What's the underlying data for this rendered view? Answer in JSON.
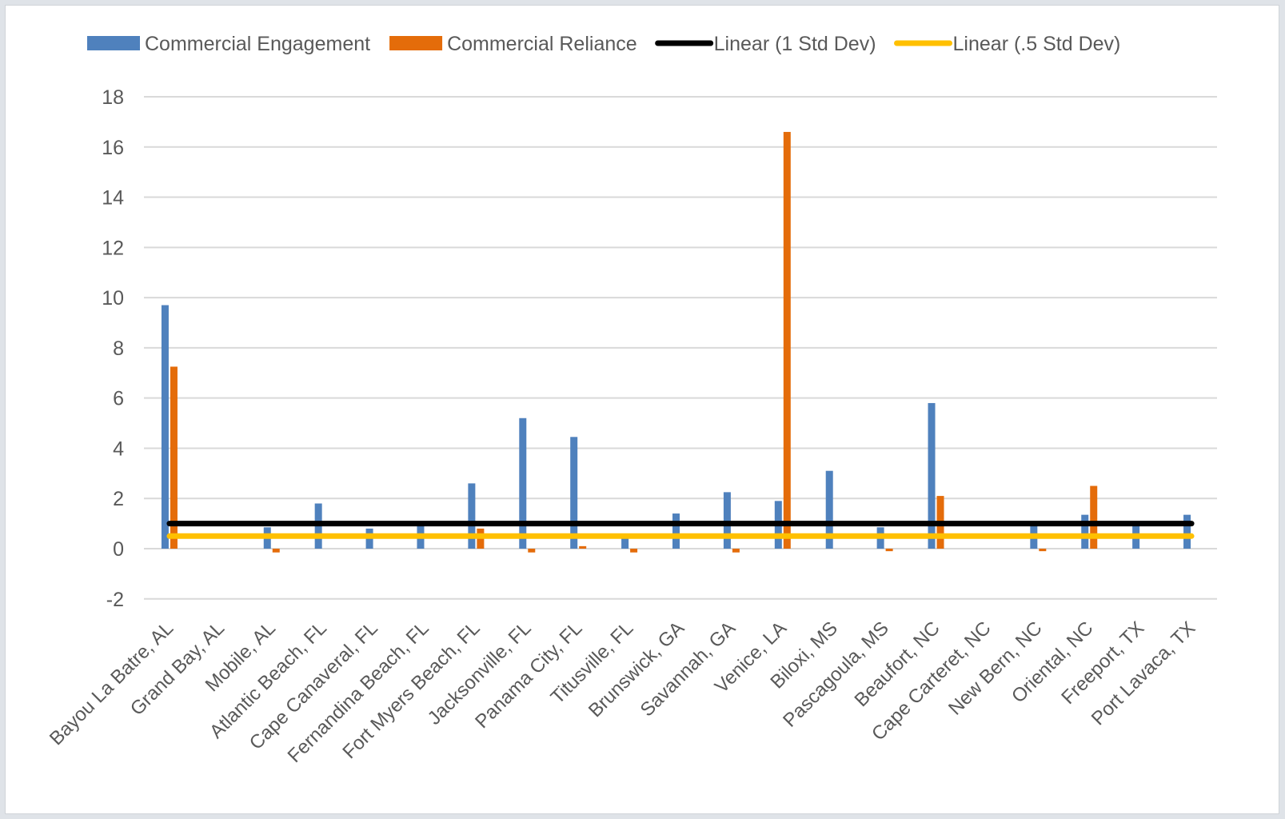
{
  "chart_data": {
    "type": "bar",
    "title": "",
    "xlabel": "",
    "ylabel": "",
    "ylim": [
      -2,
      18
    ],
    "yticks": [
      -2,
      0,
      2,
      4,
      6,
      8,
      10,
      12,
      14,
      16,
      18
    ],
    "grid": true,
    "legend_position": "top",
    "categories": [
      "Bayou La Batre, AL",
      "Grand Bay, AL",
      "Mobile, AL",
      "Atlantic Beach, FL",
      "Cape Canaveral, FL",
      "Fernandina Beach, FL",
      "Fort Myers Beach, FL",
      "Jacksonville, FL",
      "Panama City, FL",
      "Titusville, FL",
      "Brunswick, GA",
      "Savannah, GA",
      "Venice, LA",
      "Biloxi, MS",
      "Pascagoula, MS",
      "Beaufort, NC",
      "Cape Carteret, NC",
      "New Bern, NC",
      "Oriental, NC",
      "Freeport, TX",
      "Port Lavaca, TX"
    ],
    "series": [
      {
        "name": "Commercial Engagement",
        "kind": "bar",
        "color": "#4f81bd",
        "values": [
          9.7,
          0,
          0.85,
          1.8,
          0.8,
          0.9,
          2.6,
          5.2,
          4.45,
          0.5,
          1.4,
          2.25,
          1.9,
          3.1,
          0.85,
          5.8,
          0,
          0.9,
          1.35,
          1.0,
          1.35
        ]
      },
      {
        "name": "Commercial Reliance",
        "kind": "bar",
        "color": "#e46c0a",
        "values": [
          7.25,
          0,
          -0.15,
          0,
          0,
          0,
          0.8,
          -0.15,
          0.1,
          -0.15,
          0,
          -0.15,
          16.6,
          0,
          -0.1,
          2.1,
          0,
          -0.1,
          2.5,
          0,
          0
        ]
      },
      {
        "name": "Linear (1 Std Dev)",
        "kind": "line",
        "color": "#000000",
        "values": [
          1,
          1,
          1,
          1,
          1,
          1,
          1,
          1,
          1,
          1,
          1,
          1,
          1,
          1,
          1,
          1,
          1,
          1,
          1,
          1,
          1
        ]
      },
      {
        "name": "Linear (.5 Std Dev)",
        "kind": "line",
        "color": "#ffc000",
        "values": [
          0.5,
          0.5,
          0.5,
          0.5,
          0.5,
          0.5,
          0.5,
          0.5,
          0.5,
          0.5,
          0.5,
          0.5,
          0.5,
          0.5,
          0.5,
          0.5,
          0.5,
          0.5,
          0.5,
          0.5,
          0.5
        ]
      }
    ],
    "colors": {
      "grid": "#d9d9d9",
      "axis_text": "#595959"
    }
  }
}
